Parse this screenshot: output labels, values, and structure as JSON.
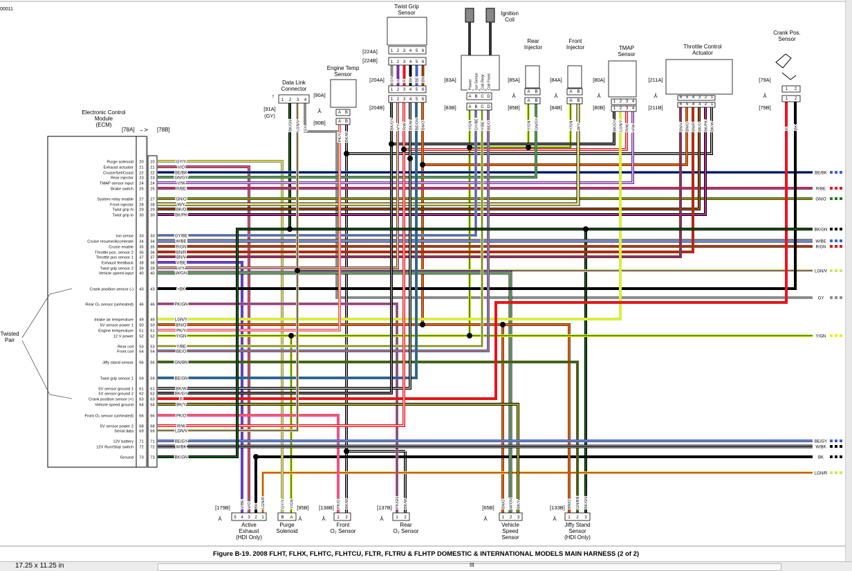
{
  "document_id": "00011",
  "ecm": {
    "title": [
      "Electronic Control",
      "Module",
      "(ECM)"
    ],
    "connector_a": "[78A]",
    "connector_b": "[78B]",
    "circuits": [
      {
        "pin": "20",
        "function": "Purge solenoid",
        "wire": "GY/Y"
      },
      {
        "pin": "21",
        "function": "Exhaust actuator",
        "wire": "V/O"
      },
      {
        "pin": "22",
        "function": "Cruise/Set/Coast",
        "wire": "BE/BK"
      },
      {
        "pin": "23",
        "function": "Rear injector",
        "wire": "GN/GY"
      },
      {
        "pin": "24",
        "function": "TMAP sensor input",
        "wire": "V/W"
      },
      {
        "pin": "25",
        "function": "Brake switch",
        "wire": "R/BE"
      },
      {
        "pin": "27",
        "function": "System relay enable",
        "wire": "GN/O"
      },
      {
        "pin": "28",
        "function": "Front injector",
        "wire": "W/Y"
      },
      {
        "pin": "29",
        "function": "Twist grip hi",
        "wire": "BK/O"
      },
      {
        "pin": "30",
        "function": "Twist grip lo",
        "wire": "BK/PK"
      },
      {
        "pin": "33",
        "function": "Ion sense",
        "wire": "GY/BE"
      },
      {
        "pin": "34",
        "function": "Cruise resume/Accelerate",
        "wire": "W/BE"
      },
      {
        "pin": "35",
        "function": "Cruise enable",
        "wire": "R/GN"
      },
      {
        "pin": "36",
        "function": "Throttle pos. sensor 2",
        "wire": "BN/R"
      },
      {
        "pin": "37",
        "function": "Throttle pos sensor 1",
        "wire": "BN/V"
      },
      {
        "pin": "38",
        "function": "Exhaust feedback",
        "wire": "V/BE"
      },
      {
        "pin": "39",
        "function": "Twist grip sensor 2",
        "wire": "V/Y"
      },
      {
        "pin": "40",
        "function": "Vehicle speed input",
        "wire": "W/GN"
      },
      {
        "pin": "43",
        "function": "Crank position sensor (-)",
        "wire": "+BK"
      },
      {
        "pin": "46",
        "function": "Rear O₂ sensor (unheated)",
        "wire": "PK/GN"
      },
      {
        "pin": "49",
        "function": "Intake air temperature",
        "wire": "LGN/Y"
      },
      {
        "pin": "50",
        "function": "5V sensor power 1",
        "wire": "BN/O"
      },
      {
        "pin": "51",
        "function": "Engine temperature",
        "wire": "PK/Y"
      },
      {
        "pin": "52",
        "function": "12 V power",
        "wire": "Y/GN"
      },
      {
        "pin": "53",
        "function": "Rear coil",
        "wire": "Y/BE"
      },
      {
        "pin": "54",
        "function": "Front coil",
        "wire": "BE/O"
      },
      {
        "pin": "56",
        "function": "Jiffy stand sensor",
        "wire": "GN/BN"
      },
      {
        "pin": "59",
        "function": "Twist grip sensor 1",
        "wire": "BE/GN"
      },
      {
        "pin": "61",
        "function": "5V sensor ground 1",
        "wire": "BK/W"
      },
      {
        "pin": "62",
        "function": "5V sensor ground 2",
        "wire": "BK/GY"
      },
      {
        "pin": "63",
        "function": "Crank position sensor (+)",
        "wire": "R"
      },
      {
        "pin": "64",
        "function": "Vehicle speed ground",
        "wire": "BK/Y"
      },
      {
        "pin": "66",
        "function": "Front O₂ sensor (unheated)",
        "wire": "PK/O"
      },
      {
        "pin": "68",
        "function": "5V sensor power 2",
        "wire": "R/W"
      },
      {
        "pin": "69",
        "function": "Serial data",
        "wire": "LGN/V"
      },
      {
        "pin": "71",
        "function": "12V battery",
        "wire": "BE/GY"
      },
      {
        "pin": "72",
        "function": "12V Run/Stop switch",
        "wire": "W/BK"
      },
      {
        "pin": "73",
        "function": "Ground",
        "wire": "BK/GN"
      }
    ]
  },
  "twisted_pair": [
    "Twisted",
    "Pair"
  ],
  "top_components": [
    {
      "name": [
        "Data Link",
        "Connector"
      ],
      "ids": [
        "[91A]",
        "(GY)"
      ],
      "pins": [
        "1",
        "2",
        "3",
        "4"
      ],
      "wires": [
        "",
        "BK/GN",
        "LGN/V",
        "GY"
      ]
    },
    {
      "name": [
        "Engine Temp",
        "Sensor"
      ],
      "ids": [
        "[90A]",
        "[90B]"
      ],
      "pins": [
        "A",
        "B"
      ],
      "wires": [
        "PK/Y",
        "BK/W"
      ]
    },
    {
      "name": [
        "Twist Grip",
        "Sensor"
      ],
      "ids": [
        "[224A]",
        "[224B]",
        "[204A]",
        "[204B]"
      ],
      "pins": [
        "1",
        "2",
        "3",
        "4",
        "5",
        "6"
      ],
      "upper_wires": [
        "GY",
        "V",
        "R",
        "BK",
        "BE",
        "BN"
      ],
      "wires": [
        "BK/GY",
        "V/Y",
        "R/W",
        "BK/W",
        "BE/GN",
        "BN/O"
      ]
    },
    {
      "name": [
        "Ignition",
        "Coil"
      ],
      "ids": [
        "[83A]",
        "[83B]"
      ],
      "pins": [
        "A",
        "B",
        "C",
        "D"
      ],
      "terminals": [
        "Power",
        "Ion Sense",
        "Coil Rear",
        "Coil Front"
      ],
      "wires": [
        "Y/GN",
        "GY/BE",
        "Y/BE",
        "BE/O"
      ]
    },
    {
      "name": [
        "Rear",
        "Injector"
      ],
      "ids": [
        "[85A]",
        "[85B]"
      ],
      "pins": [
        "A",
        "B"
      ],
      "wires": [
        "Y/GN",
        "GN/GY"
      ]
    },
    {
      "name": [
        "Front",
        "Injector"
      ],
      "ids": [
        "[84A]",
        "[84B]"
      ],
      "pins": [
        "A",
        "B"
      ],
      "wires": [
        "Y/GN",
        "W/Y"
      ]
    },
    {
      "name": [
        "TMAP",
        "Sensor"
      ],
      "ids": [
        "[80A]",
        "[80B]"
      ],
      "pins": [
        "1",
        "2",
        "3",
        "4"
      ],
      "wires": [
        "BK/GY",
        "LGN/Y",
        "R/W",
        "V/W"
      ]
    },
    {
      "name": [
        "Throttle Control",
        "Actuator"
      ],
      "ids": [
        "[211A]",
        "[211B]"
      ],
      "pins": [
        "6",
        "5",
        "4",
        "3",
        "2",
        "1"
      ],
      "wires": [
        "BN/V",
        "BN/O",
        "BN/R",
        "BK/O",
        "BK/PK",
        "BK/W"
      ]
    },
    {
      "name": [
        "Crank Pos.",
        "Sensor"
      ],
      "ids": [
        "[79A]",
        "[79B]"
      ],
      "pins": [
        "1",
        "2"
      ],
      "wires": [
        "R",
        "BK"
      ]
    }
  ],
  "bottom_components": [
    {
      "name": [
        "Active",
        "Exhaust",
        "(HDI Only)"
      ],
      "id": "[179B]",
      "pins": [
        "5",
        "4",
        "3",
        "2",
        "1"
      ],
      "wires": [
        "",
        "V/BE",
        "V/O",
        "BK",
        "LGN/R"
      ]
    },
    {
      "name": [
        "Purge",
        "Solenoid"
      ],
      "id": "[95B]",
      "pins": [
        "B",
        "A"
      ],
      "wires": [
        "GY/Y",
        "Y/GN"
      ]
    },
    {
      "name": [
        "Front",
        "O₂ Sensor"
      ],
      "id": "[138B]",
      "pins": [
        "1",
        "2"
      ],
      "wires": [
        "PK/O",
        "BK/W"
      ]
    },
    {
      "name": [
        "Rear",
        "O₂ Sensor"
      ],
      "id": "[137B]",
      "pins": [
        "1",
        "2"
      ],
      "wires": [
        "PK/GN",
        "BK/W"
      ]
    },
    {
      "name": [
        "Vehicle",
        "Speed",
        "Sensor"
      ],
      "id": "[65B]",
      "pins": [
        "1",
        "2",
        "3"
      ],
      "wires": [
        "BN/O",
        "W/GN",
        "BK/Y"
      ]
    },
    {
      "name": [
        "Jiffy Stand",
        "Sensor",
        "(HDI Only)"
      ],
      "id": "[133B]",
      "pins": [
        "1",
        "2",
        "3"
      ],
      "wires": [
        "BN/O",
        "GN/BN",
        "BK/GN"
      ]
    }
  ],
  "right_labels": [
    "BE/BK",
    "R/BE",
    "GN/O",
    "BK/GN",
    "W/BE",
    "R/GN",
    "LGN/V",
    "GY",
    "Y/GN",
    "BE/GY",
    "W/BK",
    "BK",
    "LGN/R"
  ],
  "wire_colors": {
    "BK": "#000000",
    "W": "#ffffff",
    "R": "#e8141a",
    "GN": "#1f7a1f",
    "Y": "#f2ee1a",
    "BE": "#3a5fd8",
    "V": "#7a2aa8",
    "O": "#e8731c",
    "BN": "#8b3a10",
    "GY": "#8c8c8c",
    "PK": "#f23cc8",
    "LGN": "#c6ec5a"
  },
  "caption": "Figure B-19. 2008 FLHT, FLHX, FLHTC, FLHTCU, FLTR, FLTRU & FLHTP DOMESTIC & INTERNATIONAL MODELS MAIN HARNESS (2 of 2)",
  "status": {
    "page_size": "17.25 x 11.25 in",
    "scroll_marker": "III"
  }
}
